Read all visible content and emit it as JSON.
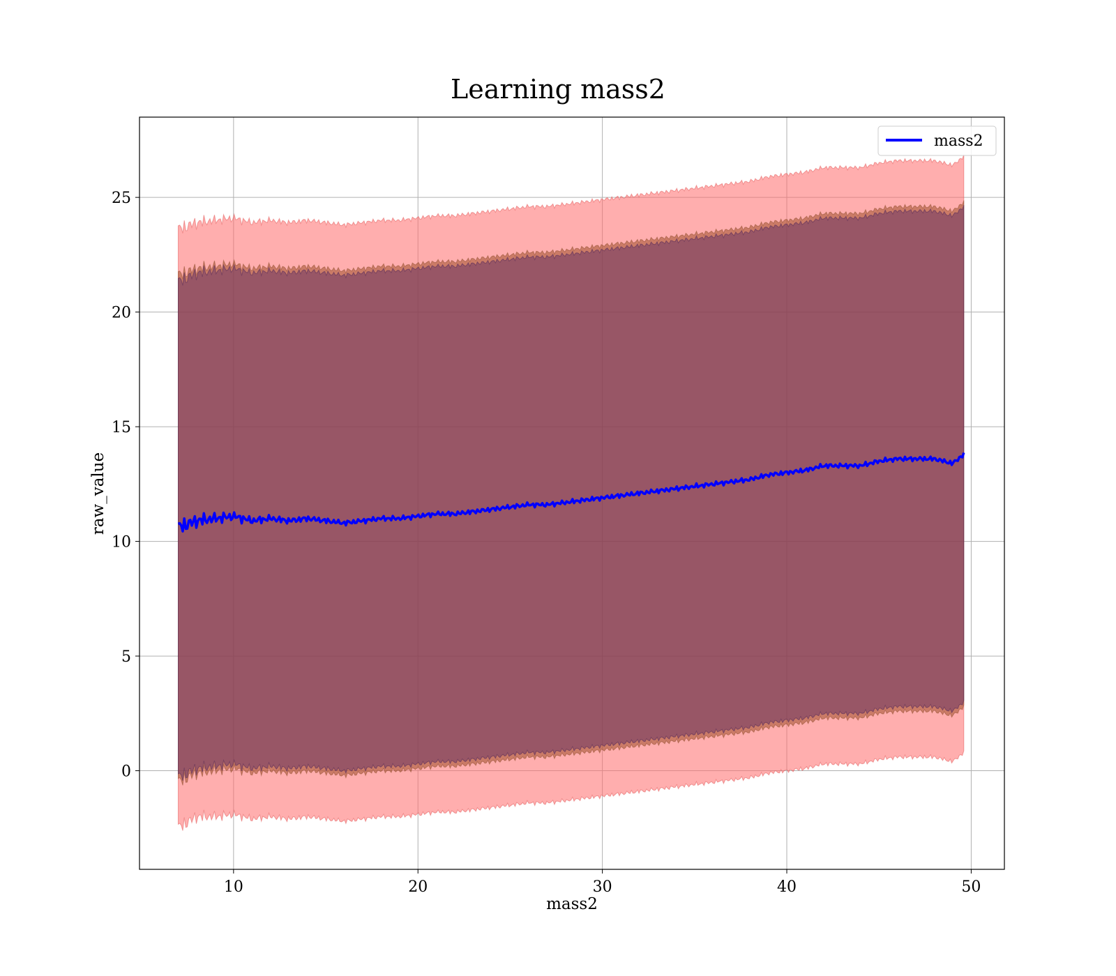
{
  "chart_data": {
    "type": "area",
    "title": "Learning mass2",
    "xlabel": "mass2",
    "ylabel": "raw_value",
    "xlim": [
      4.9,
      51.8
    ],
    "ylim": [
      -4.3,
      28.5
    ],
    "xticks": [
      10,
      20,
      30,
      40,
      50
    ],
    "yticks": [
      0,
      5,
      10,
      15,
      20,
      25
    ],
    "grid": true,
    "legend": {
      "position": "top-right",
      "entries": [
        "mass2"
      ]
    },
    "colors": {
      "line": "#0000ff",
      "outer_band": "#ff6b6b",
      "middle_band": "#a0522d",
      "inner_band": "#5b2a66"
    },
    "x": [
      7.0,
      8.0,
      9.0,
      10.0,
      11.0,
      12.0,
      13.0,
      14.0,
      15.0,
      16.0,
      17.0,
      18.0,
      19.0,
      20.0,
      21.0,
      22.0,
      23.0,
      24.0,
      25.0,
      26.0,
      27.0,
      28.0,
      29.0,
      30.0,
      31.0,
      32.0,
      33.0,
      34.0,
      35.0,
      36.0,
      37.0,
      38.0,
      39.0,
      40.0,
      41.0,
      42.0,
      43.0,
      44.0,
      45.0,
      46.0,
      47.0,
      48.0,
      49.0,
      49.6
    ],
    "series": [
      {
        "name": "mass2",
        "values": [
          10.6,
          10.9,
          11.0,
          11.1,
          10.9,
          11.0,
          10.9,
          11.0,
          10.9,
          10.8,
          10.9,
          11.0,
          11.0,
          11.1,
          11.2,
          11.2,
          11.3,
          11.4,
          11.5,
          11.6,
          11.6,
          11.7,
          11.8,
          11.9,
          12.0,
          12.1,
          12.2,
          12.3,
          12.4,
          12.5,
          12.6,
          12.7,
          12.9,
          13.0,
          13.1,
          13.3,
          13.3,
          13.3,
          13.5,
          13.6,
          13.6,
          13.6,
          13.4,
          13.8
        ]
      }
    ],
    "bands": [
      {
        "lower": [
          -2.5,
          -2.0,
          -2.0,
          -1.9,
          -2.1,
          -2.0,
          -2.1,
          -2.0,
          -2.1,
          -2.2,
          -2.1,
          -2.0,
          -2.0,
          -1.9,
          -1.8,
          -1.8,
          -1.7,
          -1.6,
          -1.5,
          -1.4,
          -1.4,
          -1.3,
          -1.2,
          -1.1,
          -1.0,
          -0.9,
          -0.8,
          -0.7,
          -0.6,
          -0.5,
          -0.4,
          -0.3,
          -0.1,
          0.0,
          0.1,
          0.3,
          0.3,
          0.3,
          0.5,
          0.6,
          0.6,
          0.6,
          0.4,
          0.8
        ],
        "upper": [
          23.6,
          23.9,
          24.0,
          24.1,
          23.9,
          24.0,
          23.9,
          24.0,
          23.9,
          23.8,
          23.9,
          24.0,
          24.0,
          24.1,
          24.2,
          24.2,
          24.3,
          24.4,
          24.5,
          24.6,
          24.6,
          24.7,
          24.8,
          24.9,
          25.0,
          25.1,
          25.2,
          25.3,
          25.4,
          25.5,
          25.6,
          25.7,
          25.9,
          26.0,
          26.1,
          26.3,
          26.3,
          26.3,
          26.5,
          26.6,
          26.6,
          26.6,
          26.4,
          26.8
        ]
      },
      {
        "lower": [
          -0.5,
          -0.1,
          0.0,
          0.1,
          -0.1,
          0.0,
          -0.1,
          0.0,
          -0.1,
          -0.2,
          -0.1,
          0.0,
          0.0,
          0.1,
          0.2,
          0.2,
          0.3,
          0.4,
          0.5,
          0.6,
          0.6,
          0.7,
          0.8,
          0.9,
          1.0,
          1.1,
          1.2,
          1.3,
          1.4,
          1.5,
          1.6,
          1.7,
          1.9,
          2.0,
          2.1,
          2.3,
          2.3,
          2.3,
          2.5,
          2.6,
          2.6,
          2.6,
          2.4,
          2.8
        ],
        "upper": [
          21.6,
          21.9,
          22.0,
          22.1,
          21.9,
          22.0,
          21.9,
          22.0,
          21.9,
          21.8,
          21.9,
          22.0,
          22.0,
          22.1,
          22.2,
          22.2,
          22.3,
          22.4,
          22.5,
          22.6,
          22.6,
          22.7,
          22.8,
          22.9,
          23.0,
          23.1,
          23.2,
          23.3,
          23.4,
          23.5,
          23.6,
          23.7,
          23.9,
          24.0,
          24.1,
          24.3,
          24.3,
          24.3,
          24.5,
          24.6,
          24.6,
          24.6,
          24.4,
          24.8
        ]
      },
      {
        "lower": [
          -0.3,
          0.1,
          0.2,
          0.3,
          0.1,
          0.2,
          0.1,
          0.2,
          0.1,
          0.0,
          0.1,
          0.2,
          0.2,
          0.3,
          0.4,
          0.4,
          0.5,
          0.6,
          0.7,
          0.8,
          0.8,
          0.9,
          1.0,
          1.1,
          1.2,
          1.3,
          1.4,
          1.5,
          1.6,
          1.7,
          1.8,
          1.9,
          2.1,
          2.2,
          2.3,
          2.5,
          2.5,
          2.5,
          2.7,
          2.8,
          2.8,
          2.8,
          2.6,
          3.0
        ],
        "upper": [
          21.3,
          21.7,
          21.8,
          21.9,
          21.7,
          21.8,
          21.7,
          21.8,
          21.7,
          21.6,
          21.7,
          21.8,
          21.8,
          21.9,
          22.0,
          22.0,
          22.1,
          22.2,
          22.3,
          22.4,
          22.4,
          22.5,
          22.6,
          22.7,
          22.8,
          22.9,
          23.0,
          23.1,
          23.2,
          23.3,
          23.4,
          23.5,
          23.7,
          23.8,
          23.9,
          24.1,
          24.1,
          24.1,
          24.3,
          24.4,
          24.4,
          24.4,
          24.2,
          24.6
        ]
      }
    ]
  }
}
